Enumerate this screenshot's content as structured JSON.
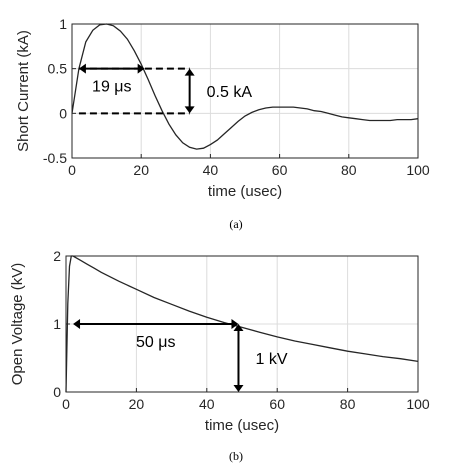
{
  "chart_data": [
    {
      "type": "line",
      "caption": "(a)",
      "xlabel": "time (usec)",
      "ylabel": "Short Current (kA)",
      "xlim": [
        0,
        100
      ],
      "ylim": [
        -0.5,
        1
      ],
      "xticks": [
        "0",
        "20",
        "40",
        "60",
        "80",
        "100"
      ],
      "yticks": [
        "-0.5",
        "0",
        "0.5",
        "1"
      ],
      "grid": true,
      "series": [
        {
          "x": [
            0,
            2,
            4,
            6,
            8,
            10,
            12,
            14,
            16,
            18,
            20,
            22,
            24,
            26,
            28,
            30,
            32,
            34,
            36,
            38,
            40,
            42,
            44,
            46,
            48,
            50,
            52,
            54,
            56,
            58,
            60,
            62,
            64,
            66,
            68,
            70,
            72,
            74,
            76,
            78,
            80,
            82,
            84,
            86,
            88,
            90,
            92,
            94,
            96,
            98,
            100
          ],
          "y": [
            0,
            0.5,
            0.8,
            0.93,
            0.99,
            1,
            0.98,
            0.92,
            0.83,
            0.7,
            0.55,
            0.38,
            0.2,
            0.03,
            -0.12,
            -0.24,
            -0.33,
            -0.38,
            -0.4,
            -0.39,
            -0.35,
            -0.3,
            -0.23,
            -0.16,
            -0.09,
            -0.03,
            0.01,
            0.04,
            0.06,
            0.07,
            0.07,
            0.07,
            0.07,
            0.06,
            0.05,
            0.03,
            0.02,
            0,
            -0.02,
            -0.04,
            -0.05,
            -0.06,
            -0.07,
            -0.08,
            -0.08,
            -0.08,
            -0.08,
            -0.07,
            -0.07,
            -0.07,
            -0.06
          ]
        }
      ],
      "annotations": [
        {
          "label": "19 μs",
          "type": "double-arrow",
          "x0": 2,
          "x1": 21,
          "y": 0.5
        },
        {
          "label": "0.5 kA",
          "type": "double-arrow",
          "x": 34,
          "y0": 0,
          "y1": 0.5
        },
        {
          "type": "dashed",
          "x0": 2,
          "x1": 34,
          "y": 0.5
        },
        {
          "type": "dashed",
          "x0": 2,
          "x1": 34,
          "y": 0
        }
      ]
    },
    {
      "type": "line",
      "caption": "(b)",
      "xlabel": "time (usec)",
      "ylabel": "Open Voltage (kV)",
      "xlim": [
        0,
        100
      ],
      "ylim": [
        0,
        2
      ],
      "xticks": [
        "0",
        "20",
        "40",
        "60",
        "80",
        "100"
      ],
      "yticks": [
        "0",
        "1",
        "2"
      ],
      "grid": true,
      "series": [
        {
          "x": [
            0,
            0.5,
            1,
            1.5,
            2,
            4,
            6,
            8,
            10,
            15,
            20,
            25,
            30,
            35,
            40,
            45,
            50,
            55,
            60,
            65,
            70,
            75,
            80,
            85,
            90,
            95,
            100
          ],
          "y": [
            0,
            1.3,
            1.85,
            2,
            2,
            1.94,
            1.88,
            1.82,
            1.76,
            1.63,
            1.51,
            1.39,
            1.29,
            1.19,
            1.1,
            1.02,
            0.95,
            0.88,
            0.81,
            0.75,
            0.7,
            0.65,
            0.6,
            0.56,
            0.52,
            0.49,
            0.45
          ]
        }
      ],
      "annotations": [
        {
          "label": "50 μs",
          "type": "double-arrow",
          "x0": 2,
          "x1": 49,
          "y": 1
        },
        {
          "label": "1 kV",
          "type": "double-arrow",
          "x": 49,
          "y0": 0,
          "y1": 1
        }
      ]
    }
  ]
}
